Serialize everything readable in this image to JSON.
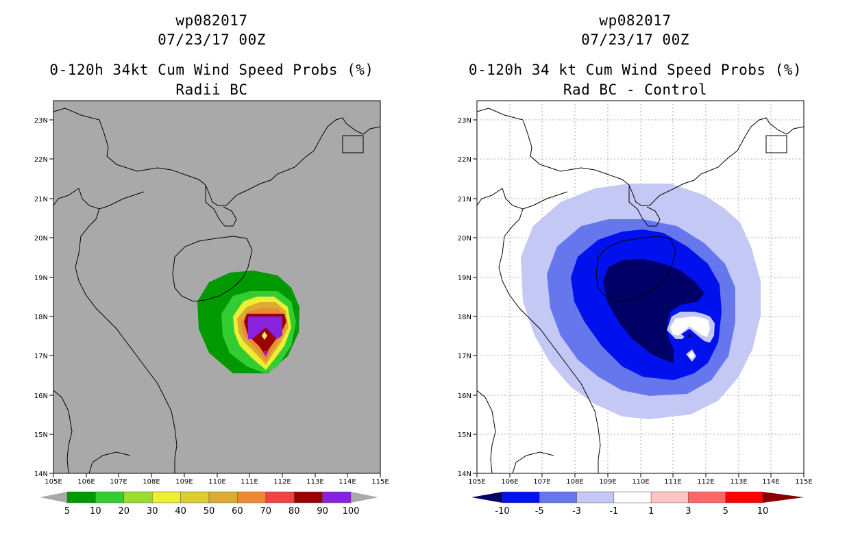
{
  "left": {
    "title1": "wp082017",
    "title2": "07/23/17 00Z",
    "title3": "0-120h 34kt Cum Wind Speed Probs (%)",
    "title4": "Radii BC",
    "colorbar": {
      "labels": [
        "5",
        "10",
        "20",
        "30",
        "40",
        "50",
        "60",
        "70",
        "80",
        "90",
        "100"
      ],
      "colors": [
        "#009900",
        "#33cc33",
        "#99dd33",
        "#eeee33",
        "#ddcc33",
        "#ddaa33",
        "#ee8833",
        "#ee4444",
        "#990000",
        "#8822dd"
      ]
    },
    "background": "#a9a9a9"
  },
  "right": {
    "title1": "wp082017",
    "title2": "07/23/17 00Z",
    "title3": "0-120h 34 kt Cum Wind Speed Probs (%)",
    "title4": "Rad BC - Control",
    "colorbar": {
      "labels": [
        "-10",
        "-5",
        "-3",
        "-1",
        "1",
        "3",
        "5",
        "10"
      ],
      "colors": [
        "#000066",
        "#0011ee",
        "#6677ee",
        "#c4c8f4",
        "#ffffff",
        "#ffc4c4",
        "#ff6666",
        "#ff0000",
        "#880000"
      ]
    },
    "background": "#ffffff"
  },
  "axes": {
    "lat_labels": [
      "23N",
      "22N",
      "21N",
      "20N",
      "19N",
      "18N",
      "17N",
      "16N",
      "15N",
      "14N"
    ],
    "lon_labels": [
      "105E",
      "106E",
      "107E",
      "108E",
      "109E",
      "110E",
      "111E",
      "112E",
      "113E",
      "114E",
      "115E"
    ]
  }
}
